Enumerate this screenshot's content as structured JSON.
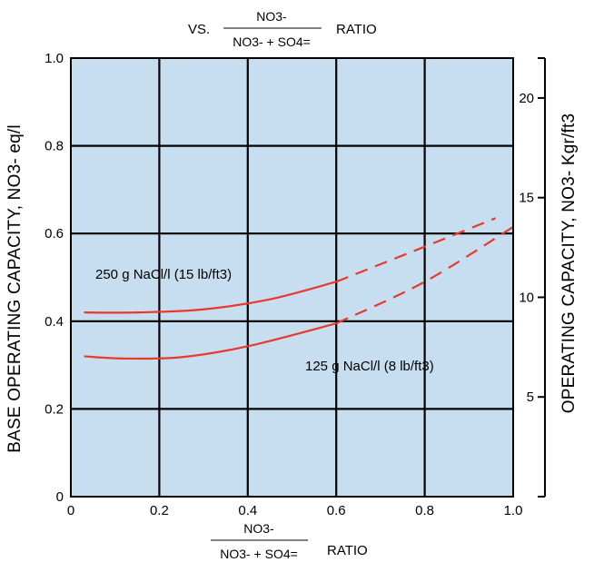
{
  "chart_data": {
    "type": "line",
    "title": {
      "prefix": "VS.",
      "numerator": "NO3-",
      "denominator": "NO3- + SO4=",
      "suffix": "RATIO"
    },
    "xlabel": {
      "numerator": "NO3-",
      "denominator": "NO3- + SO4=",
      "suffix": "RATIO"
    },
    "ylabel_left": "BASE OPERATING CAPACITY, NO3- eq/l",
    "ylabel_right": "OPERATING CAPACITY, NO3- Kgr/ft3",
    "xlim": [
      0,
      1.0
    ],
    "ylim": [
      0,
      1.0
    ],
    "y2lim": [
      0,
      22
    ],
    "x_ticks": [
      "0",
      "0.2",
      "0.4",
      "0.6",
      "0.8",
      "1.0"
    ],
    "y_ticks": [
      "0",
      "0.2",
      "0.4",
      "0.6",
      "0.8",
      "1.0"
    ],
    "y2_ticks": [
      "5",
      "10",
      "15",
      "20"
    ],
    "grid": true,
    "background_color": "#c7ddf0",
    "series_color": "#e8392d",
    "series": [
      {
        "name": "250 g NaCl/l (15 lb/ft3)",
        "solid": [
          [
            0.03,
            0.42
          ],
          [
            0.15,
            0.42
          ],
          [
            0.3,
            0.427
          ],
          [
            0.45,
            0.45
          ],
          [
            0.6,
            0.49
          ]
        ],
        "dashed": [
          [
            0.6,
            0.49
          ],
          [
            0.8,
            0.57
          ],
          [
            0.96,
            0.635
          ]
        ]
      },
      {
        "name": "125 g NaCl/l (8 lb/ft3)",
        "solid": [
          [
            0.03,
            0.32
          ],
          [
            0.12,
            0.315
          ],
          [
            0.25,
            0.318
          ],
          [
            0.4,
            0.343
          ],
          [
            0.6,
            0.395
          ]
        ],
        "dashed": [
          [
            0.6,
            0.395
          ],
          [
            0.8,
            0.49
          ],
          [
            1.0,
            0.615
          ]
        ]
      }
    ]
  }
}
